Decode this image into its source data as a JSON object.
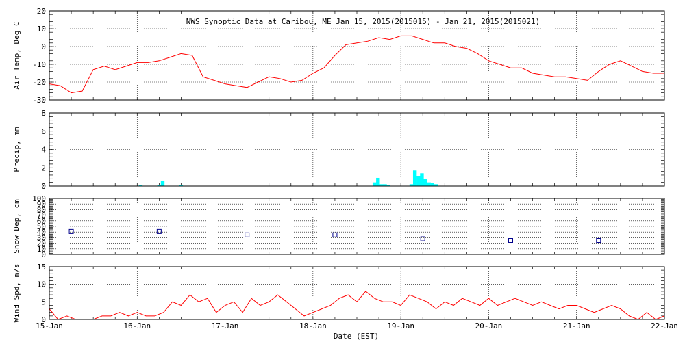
{
  "title": "NWS Synoptic Data at Caribou, ME   Jan 15, 2015(2015015) - Jan 21, 2015(2015021)",
  "xlabel": "Date (EST)",
  "x_ticks": [
    "15-Jan",
    "16-Jan",
    "17-Jan",
    "18-Jan",
    "19-Jan",
    "20-Jan",
    "21-Jan",
    "22-Jan"
  ],
  "colors": {
    "line": "#ff0000",
    "bar": "#00ffff",
    "marker": "#00008b",
    "axes": "#000000"
  },
  "chart_data": [
    {
      "type": "line",
      "ylabel": "Air Temp, Deg C",
      "ylim": [
        -30,
        20
      ],
      "yticks": [
        -30,
        -20,
        -10,
        0,
        10,
        20
      ],
      "grid": true,
      "series": [
        {
          "x": [
            0,
            0.125,
            0.25,
            0.375,
            0.5,
            0.625,
            0.75,
            0.875,
            1,
            1.125,
            1.25,
            1.375,
            1.5,
            1.625,
            1.75,
            1.875,
            2,
            2.125,
            2.25,
            2.375,
            2.5,
            2.625,
            2.75,
            2.875,
            3,
            3.125,
            3.25,
            3.375,
            3.5,
            3.625,
            3.75,
            3.875,
            4,
            4.125,
            4.25,
            4.375,
            4.5,
            4.625,
            4.75,
            4.875,
            5,
            5.125,
            5.25,
            5.375,
            5.5,
            5.625,
            5.75,
            5.875,
            6,
            6.125,
            6.25,
            6.375,
            6.5,
            6.625,
            6.75,
            6.875,
            7
          ],
          "values": [
            -21,
            -22,
            -26,
            -25,
            -13,
            -11,
            -13,
            -11,
            -9,
            -9,
            -8,
            -6,
            -4,
            -5,
            -17,
            -19,
            -21,
            -22,
            -23,
            -20,
            -17,
            -18,
            -20,
            -19,
            -15,
            -12,
            -5,
            1,
            2,
            3,
            5,
            4,
            6,
            6,
            4,
            2,
            2,
            0,
            -1,
            -4,
            -8,
            -10,
            -12,
            -12,
            -15,
            -16,
            -17,
            -17,
            -18,
            -19,
            -14,
            -10,
            -8,
            -11,
            -14,
            -15,
            -15
          ]
        }
      ]
    },
    {
      "type": "bar",
      "ylabel": "Precip, mm",
      "ylim": [
        0,
        8
      ],
      "yticks": [
        0,
        2,
        4,
        6,
        8
      ],
      "grid": true,
      "bar_width_days": 0.042,
      "x": [
        1.04,
        1.25,
        1.29,
        1.5,
        3.7,
        3.74,
        3.78,
        3.82,
        3.86,
        4.12,
        4.16,
        4.2,
        4.24,
        4.28,
        4.32,
        4.36,
        4.4
      ],
      "values": [
        0.1,
        0.1,
        0.6,
        0.1,
        0.4,
        0.9,
        0.2,
        0.2,
        0.1,
        0.2,
        1.7,
        1.1,
        1.4,
        0.8,
        0.4,
        0.3,
        0.2
      ]
    },
    {
      "type": "scatter",
      "ylabel": "Snow Dep, cm",
      "ylim": [
        0,
        100
      ],
      "yticks": [
        0,
        10,
        20,
        30,
        40,
        50,
        60,
        70,
        80,
        90,
        100
      ],
      "grid": true,
      "x": [
        0.25,
        1.25,
        2.25,
        3.25,
        4.25,
        5.25,
        6.25
      ],
      "values": [
        41,
        41,
        35,
        35,
        28,
        25,
        25
      ]
    },
    {
      "type": "line",
      "ylabel": "Wind Spd, m/s",
      "ylim": [
        0,
        15
      ],
      "yticks": [
        0,
        5,
        10,
        15
      ],
      "grid": true,
      "series": [
        {
          "x": [
            0,
            0.1,
            0.2,
            0.3,
            0.4,
            0.5,
            0.6,
            0.7,
            0.8,
            0.9,
            1,
            1.1,
            1.2,
            1.3,
            1.4,
            1.5,
            1.6,
            1.7,
            1.8,
            1.9,
            2,
            2.1,
            2.2,
            2.3,
            2.4,
            2.5,
            2.6,
            2.7,
            2.8,
            2.9,
            3,
            3.1,
            3.2,
            3.3,
            3.4,
            3.5,
            3.6,
            3.7,
            3.8,
            3.9,
            4,
            4.1,
            4.2,
            4.3,
            4.4,
            4.5,
            4.6,
            4.7,
            4.8,
            4.9,
            5,
            5.1,
            5.2,
            5.3,
            5.4,
            5.5,
            5.6,
            5.7,
            5.8,
            5.9,
            6,
            6.1,
            6.2,
            6.3,
            6.4,
            6.5,
            6.6,
            6.7,
            6.8,
            6.9,
            7
          ],
          "values": [
            3,
            0,
            1,
            0,
            0,
            0,
            1,
            1,
            2,
            1,
            2,
            1,
            1,
            2,
            5,
            4,
            7,
            5,
            6,
            2,
            4,
            5,
            2,
            6,
            4,
            5,
            7,
            5,
            3,
            1,
            2,
            3,
            4,
            6,
            7,
            5,
            8,
            6,
            5,
            5,
            4,
            7,
            6,
            5,
            3,
            5,
            4,
            6,
            5,
            4,
            6,
            4,
            5,
            6,
            5,
            4,
            5,
            4,
            3,
            4,
            4,
            3,
            2,
            3,
            4,
            3,
            1,
            0,
            2,
            0,
            1
          ]
        }
      ]
    }
  ]
}
